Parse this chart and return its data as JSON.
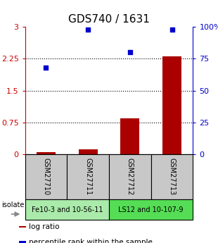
{
  "title": "GDS740 / 1631",
  "samples": [
    "GSM27710",
    "GSM27711",
    "GSM27712",
    "GSM27713"
  ],
  "log_ratios": [
    0.05,
    0.12,
    0.85,
    2.3
  ],
  "percentile_ranks": [
    68,
    98,
    80,
    98
  ],
  "left_yticks": [
    0,
    0.75,
    1.5,
    2.25,
    3
  ],
  "right_yticks": [
    0,
    25,
    50,
    75,
    100
  ],
  "ylim_left": [
    0,
    3
  ],
  "ylim_right": [
    0,
    100
  ],
  "groups": [
    {
      "label": "Fe10-3 and 10-56-11",
      "samples_idx": [
        0,
        1
      ],
      "color": "#aaeaaa"
    },
    {
      "label": "LS12 and 10-107-9",
      "samples_idx": [
        2,
        3
      ],
      "color": "#55dd55"
    }
  ],
  "bar_color": "#aa0000",
  "dot_color": "#0000cc",
  "bar_width": 0.45,
  "dotted_lines": [
    0.75,
    1.5,
    2.25
  ],
  "legend_items": [
    {
      "label": "log ratio",
      "color": "#aa0000"
    },
    {
      "label": "percentile rank within the sample",
      "color": "#0000cc"
    }
  ],
  "isolate_label": "isolate",
  "background_color": "#ffffff",
  "left_axis_color": "#cc0000",
  "right_axis_color": "#0000cc",
  "sample_box_color": "#c8c8c8",
  "title_fontsize": 11,
  "tick_fontsize": 8,
  "sample_fontsize": 7,
  "group_fontsize": 7,
  "legend_fontsize": 7.5
}
